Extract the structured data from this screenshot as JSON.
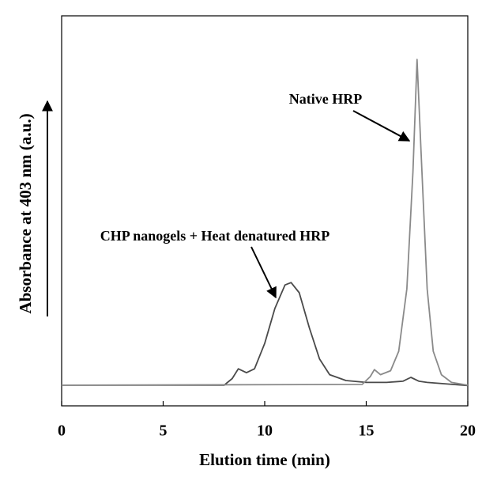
{
  "chart_data": {
    "type": "line",
    "xlabel": "Elution time (min)",
    "ylabel": "Absorbance at 403 nm (a.u.)",
    "xlim": [
      0,
      20
    ],
    "xticks": [
      0,
      5,
      10,
      15,
      20
    ],
    "ylim": [
      0,
      100
    ],
    "annotations": [
      {
        "text": "Native HRP"
      },
      {
        "text": "CHP nanogels + Heat denatured HRP"
      }
    ],
    "series": [
      {
        "color": "#4a4a4a",
        "x": [
          0,
          8,
          8.4,
          8.7,
          9.1,
          9.5,
          10,
          10.5,
          11,
          11.3,
          11.7,
          12.2,
          12.7,
          13.2,
          14,
          15,
          16,
          16.8,
          17.2,
          17.6,
          18,
          19,
          20
        ],
        "values": [
          5.3,
          5.3,
          7,
          9.5,
          8.5,
          9.5,
          16,
          25,
          31,
          31.6,
          29,
          20,
          12,
          8,
          6.5,
          6,
          6,
          6.3,
          7.3,
          6.3,
          6,
          5.6,
          5.2
        ]
      },
      {
        "color": "#8a8a8a",
        "x": [
          0,
          14.8,
          15.2,
          15.4,
          15.7,
          16.2,
          16.6,
          17,
          17.3,
          17.5,
          17.7,
          18,
          18.3,
          18.7,
          19.2,
          20
        ],
        "values": [
          5.3,
          5.5,
          7.5,
          9.3,
          8,
          9,
          14,
          30,
          60,
          88.8,
          65,
          30,
          14,
          8,
          6,
          5.3
        ]
      }
    ]
  }
}
